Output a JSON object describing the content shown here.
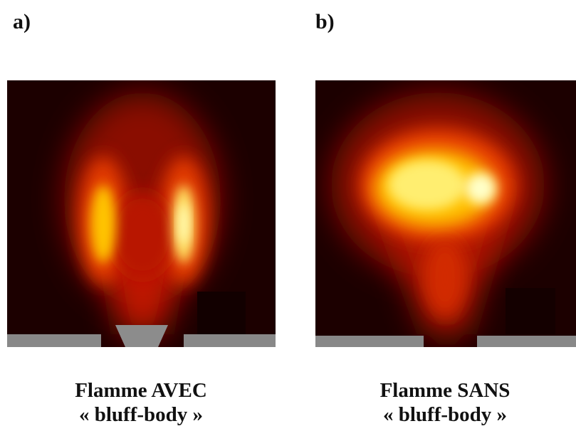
{
  "panels": [
    {
      "label": "a)",
      "caption": [
        "Flamme AVEC",
        "« bluff-body »"
      ]
    },
    {
      "label": "b)",
      "caption": [
        "Flamme SANS",
        "« bluff-body »"
      ]
    }
  ]
}
